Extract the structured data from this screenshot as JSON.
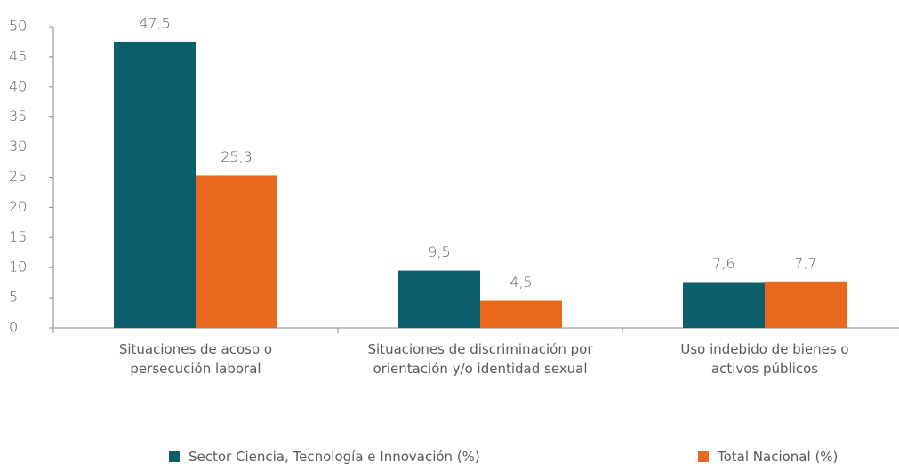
{
  "chart_data": {
    "type": "bar",
    "categories": [
      "Situaciones de acoso o persecución laboral",
      "Situaciones de discriminación por orientación y/o identidad sexual",
      "Uso indebido de bienes o activos públicos"
    ],
    "series": [
      {
        "name": "Sector Ciencia, Tecnología e Innovación (%)",
        "color": "#0b5f6b",
        "values": [
          47.5,
          9.5,
          7.6
        ],
        "value_labels": [
          "47,5",
          "9,5",
          "7,6"
        ]
      },
      {
        "name": "Total Nacional (%)",
        "color": "#e8681c",
        "values": [
          25.3,
          4.5,
          7.7
        ],
        "value_labels": [
          "25,3",
          "4,5",
          "7,7"
        ]
      }
    ],
    "ylim": [
      0,
      50
    ],
    "yticks": [
      0,
      5,
      10,
      15,
      20,
      25,
      30,
      35,
      40,
      45,
      50
    ],
    "grid": false,
    "legend": "bottom"
  }
}
